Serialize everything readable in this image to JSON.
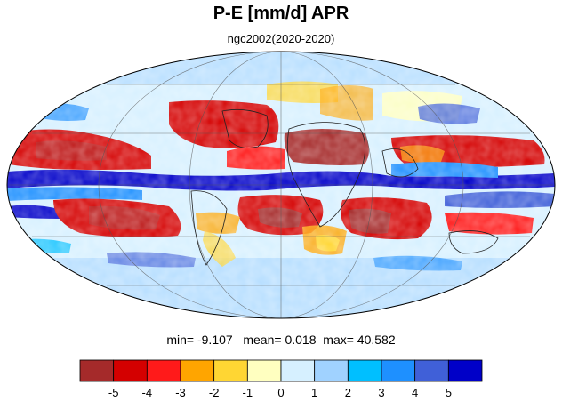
{
  "title": "P-E [mm/d] APR",
  "subtitle": "ngc2002(2020-2020)",
  "stats": {
    "min_label": "min=",
    "min_value": "-9.107",
    "mean_label": "mean=",
    "mean_value": "0.018",
    "max_label": "max=",
    "max_value": "40.582"
  },
  "projection": "mollweide",
  "colorbar": {
    "colors": [
      "#a52a2a",
      "#d40000",
      "#ff1a1a",
      "#ffa500",
      "#ffd633",
      "#ffffc0",
      "#d6f0ff",
      "#a0d2ff",
      "#00bfff",
      "#1e90ff",
      "#4060d8",
      "#0000c8"
    ],
    "ticks": [
      "-5",
      "-4",
      "-3",
      "-2",
      "-1",
      "0",
      "1",
      "2",
      "3",
      "4",
      "5"
    ]
  }
}
